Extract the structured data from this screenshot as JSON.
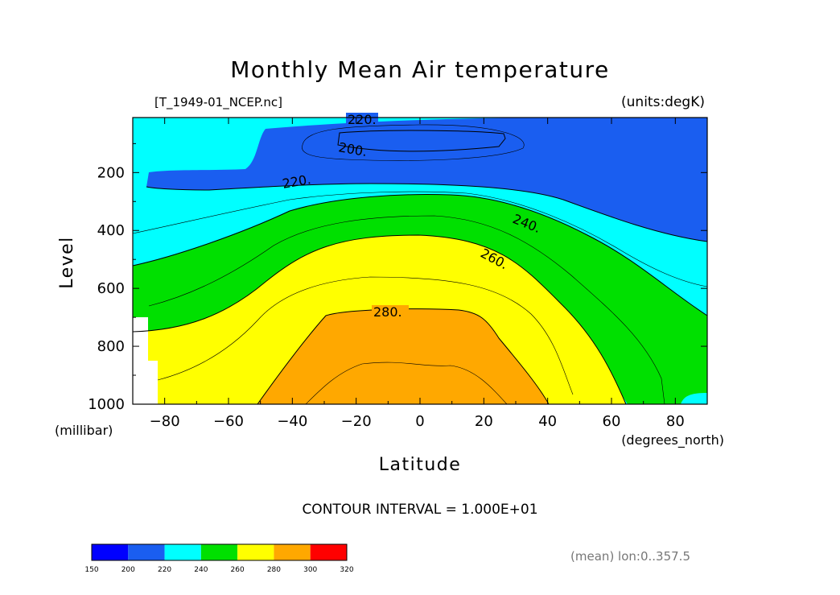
{
  "chart_data": {
    "type": "contour",
    "title": "Monthly Mean Air temperature",
    "source_file": "[T_1949-01_NCEP.nc]",
    "units": "(units:degK)",
    "xlabel": "Latitude",
    "x_units": "(degrees_north)",
    "ylabel": "Level",
    "y_units": "(millibar)",
    "xlim": [
      -90,
      90
    ],
    "ylim": [
      1000,
      10
    ],
    "y_axis_inverted": true,
    "x_ticks": [
      "-80",
      "-60",
      "-40",
      "-20",
      "0",
      "20",
      "40",
      "60",
      "80"
    ],
    "x_tick_values": [
      -80,
      -60,
      -40,
      -20,
      0,
      20,
      40,
      60,
      80
    ],
    "y_ticks": [
      "200",
      "400",
      "600",
      "800",
      "1000"
    ],
    "y_tick_values": [
      200,
      400,
      600,
      800,
      1000
    ],
    "contour_interval_text": "CONTOUR INTERVAL = 1.000E+01",
    "contour_labels": [
      "220.",
      "200.",
      "220.",
      "240.",
      "260.",
      "280."
    ],
    "colorbar": {
      "levels": [
        150,
        200,
        220,
        240,
        260,
        280,
        300,
        320
      ],
      "labels": [
        "150",
        "200",
        "220",
        "240",
        "260",
        "280",
        "300",
        "320"
      ],
      "colors": [
        "#0000ff",
        "#1a5ef0",
        "#00ffff",
        "#00e000",
        "#ffff00",
        "#ffa800",
        "#ff0000"
      ]
    },
    "footnote": "(mean) lon:0..357.5"
  }
}
